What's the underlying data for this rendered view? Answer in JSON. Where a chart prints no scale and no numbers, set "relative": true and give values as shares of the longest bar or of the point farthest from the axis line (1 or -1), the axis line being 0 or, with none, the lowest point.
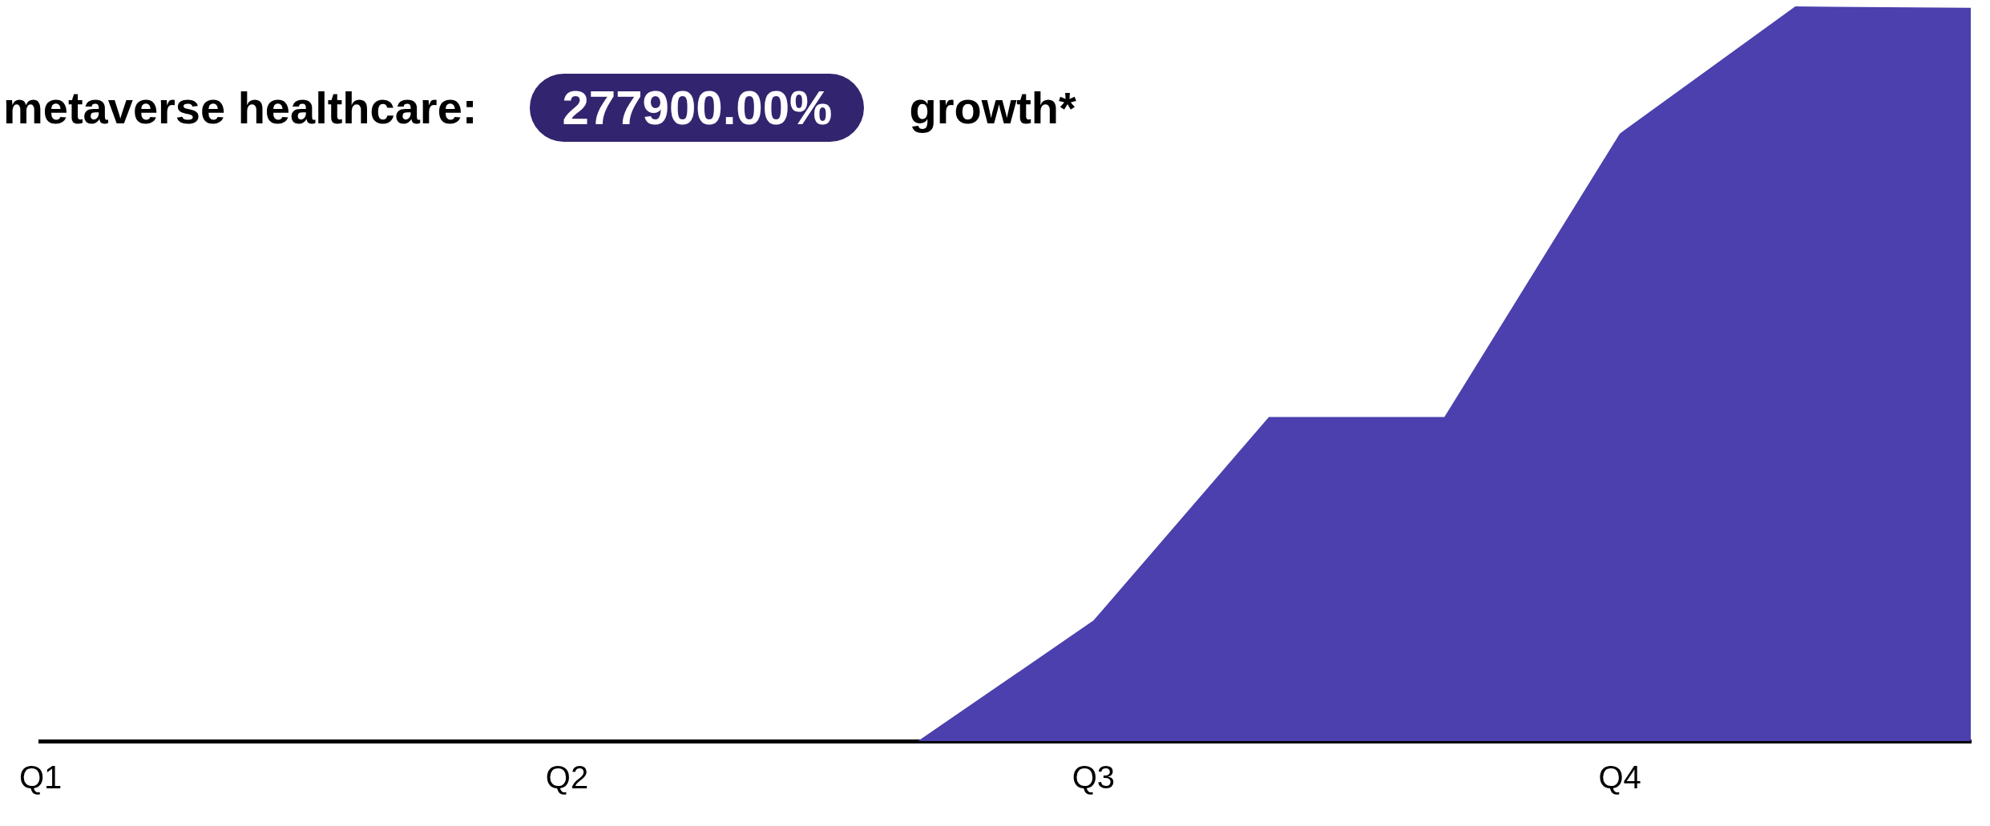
{
  "chart_data": {
    "type": "area",
    "title": "metaverse healthcare:",
    "annotations": [
      "277900.00%",
      "growth*"
    ],
    "categories": [
      "Q1",
      null,
      null,
      "Q2",
      null,
      null,
      "Q3",
      null,
      null,
      "Q4",
      null,
      null
    ],
    "relative": true,
    "grid": false,
    "series": [
      {
        "color": "#4b40ad",
        "values": [
          0,
          0,
          0,
          0,
          0,
          0,
          0.164,
          0.441,
          0.441,
          0.827,
          1,
          0.998
        ]
      }
    ]
  }
}
